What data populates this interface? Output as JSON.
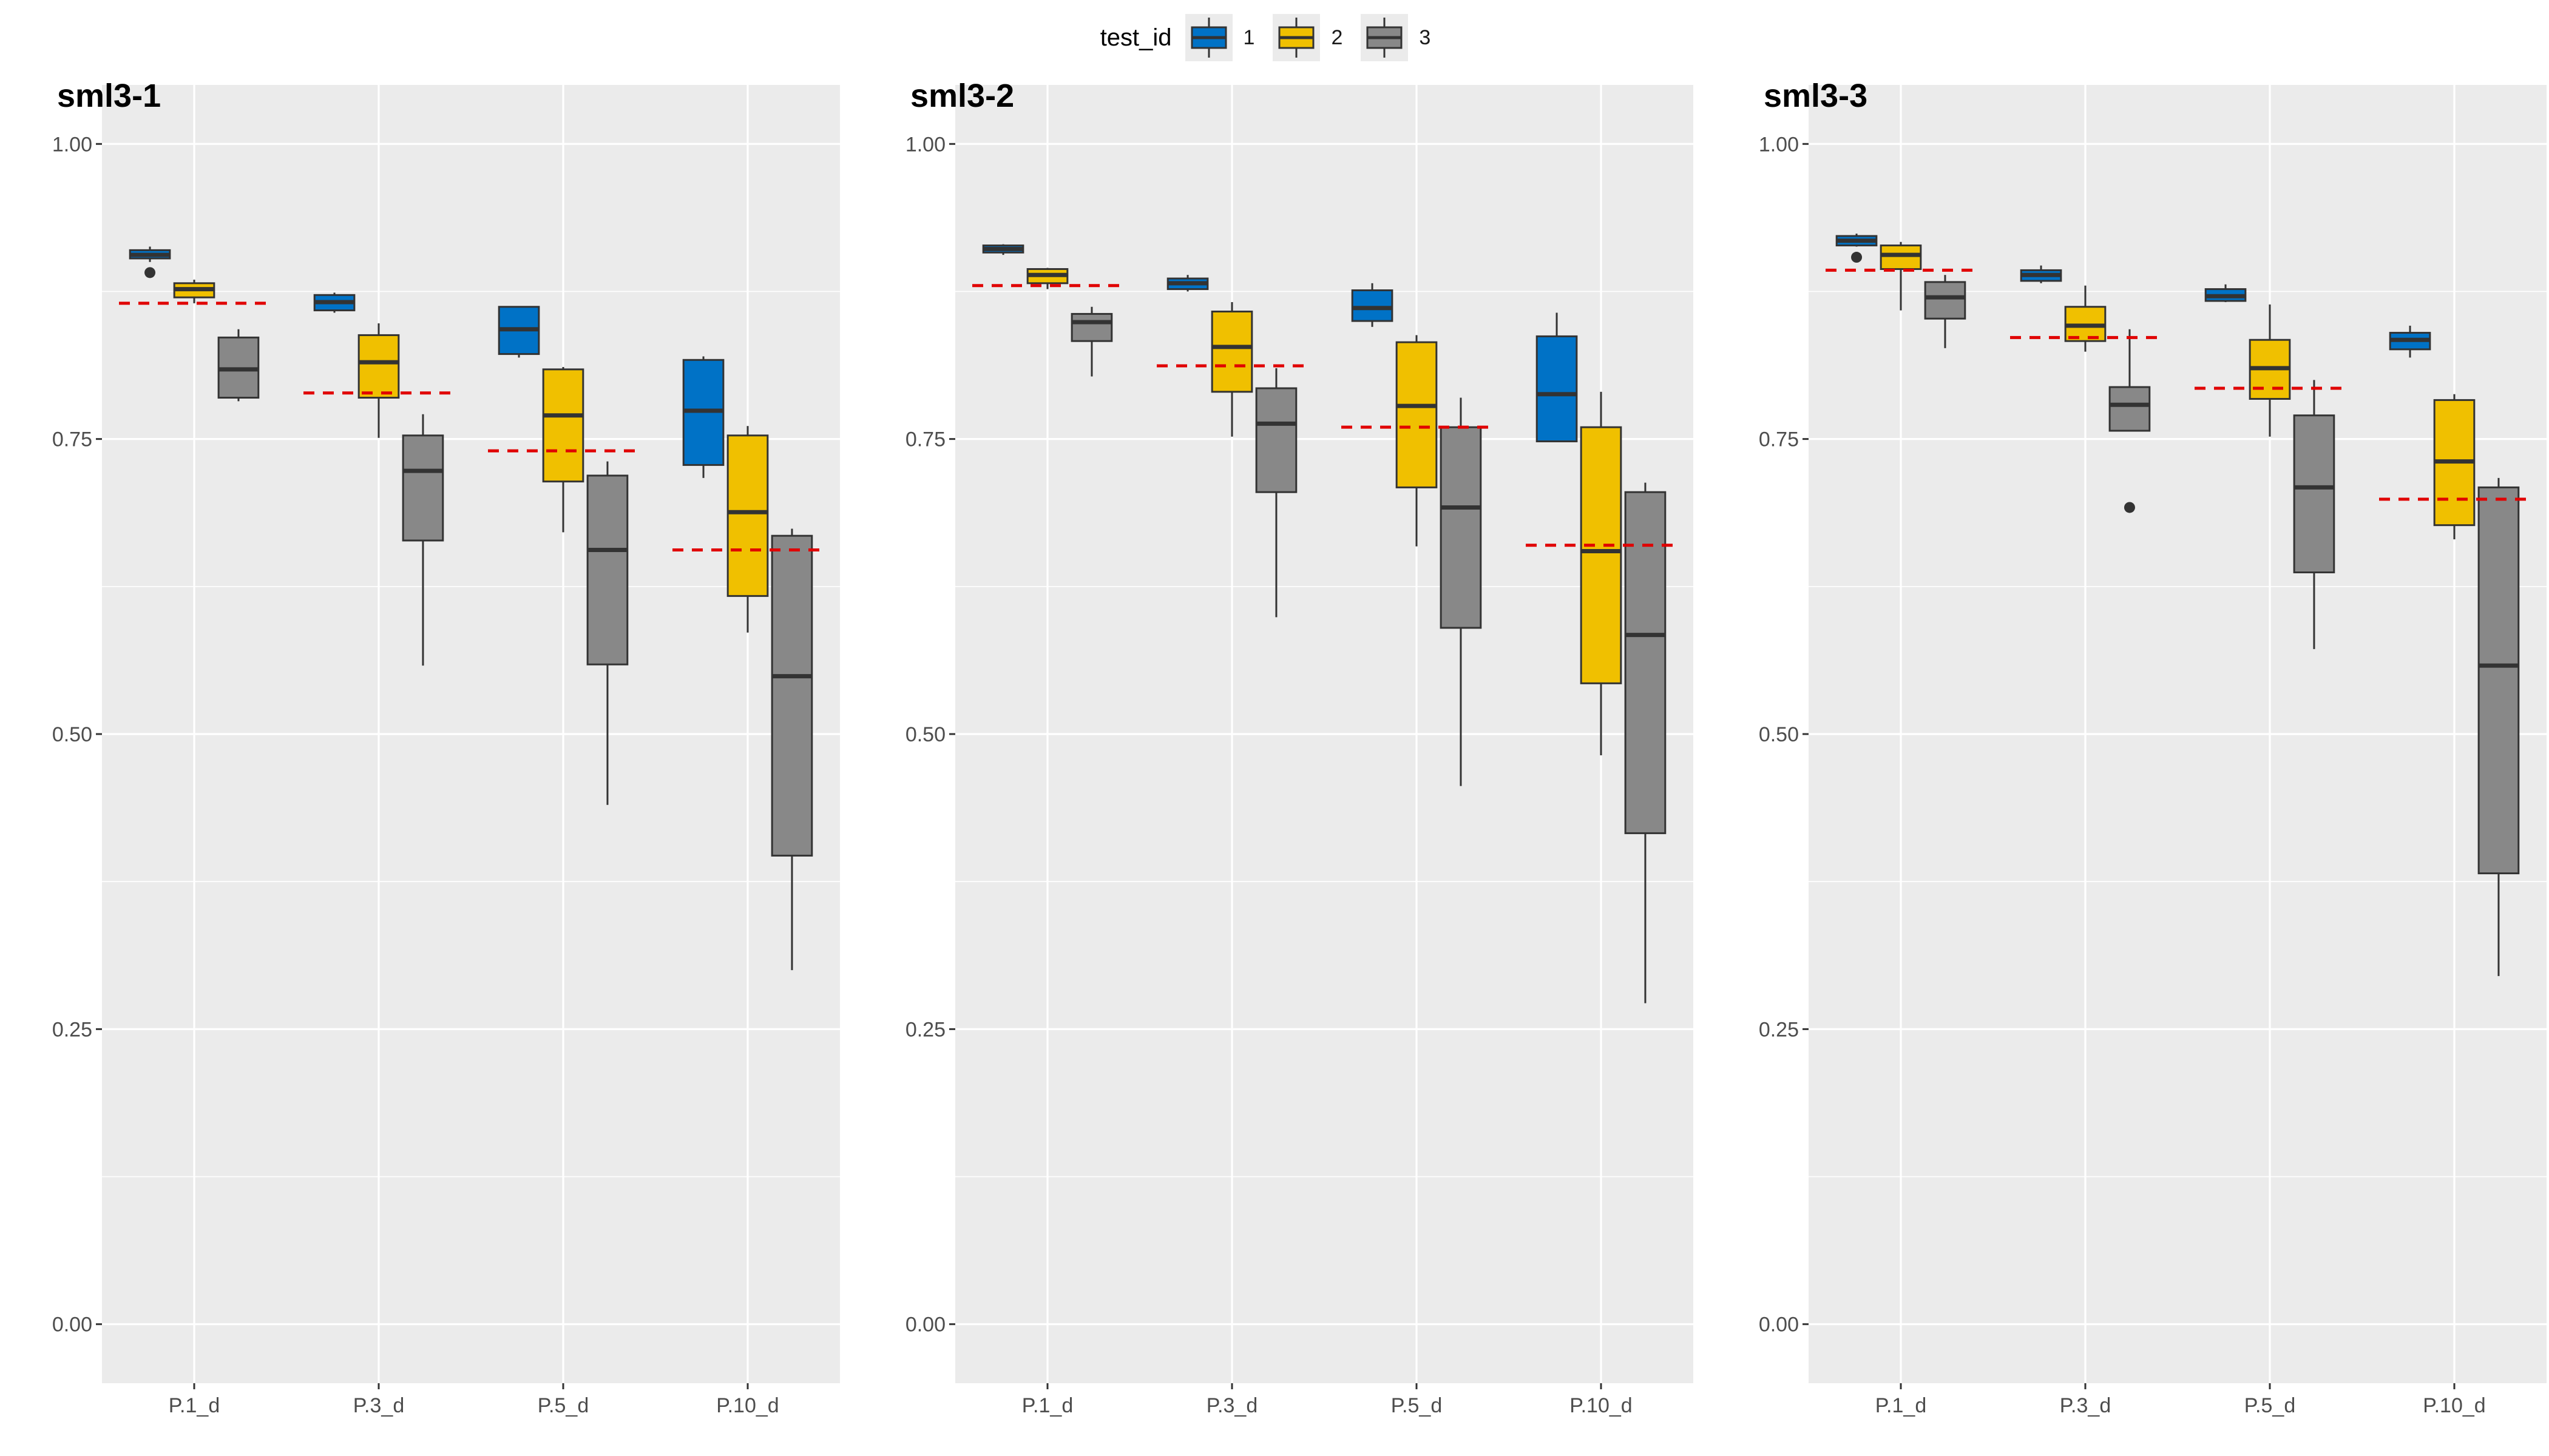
{
  "legend": {
    "title": "test_id",
    "items": [
      {
        "label": "1",
        "color": "#0072C6"
      },
      {
        "label": "2",
        "color": "#F0C000"
      },
      {
        "label": "3",
        "color": "#888888"
      }
    ]
  },
  "chart_data": [
    {
      "type": "box",
      "title": "sml3-1",
      "categories": [
        "P.1_d",
        "P.3_d",
        "P.5_d",
        "P.10_d"
      ],
      "ylim": [
        -0.05,
        1.05
      ],
      "yticks": [
        "0.00",
        "0.25",
        "0.50",
        "0.75",
        "1.00"
      ],
      "ref_line_color": "#E00000",
      "ref_lines": [
        0.865,
        0.789,
        0.74,
        0.656
      ],
      "series": [
        {
          "name": "1",
          "boxes": [
            {
              "min": 0.9,
              "q1": 0.903,
              "median": 0.906,
              "q3": 0.91,
              "max": 0.913,
              "outliers": [
                0.891
              ]
            },
            {
              "min": 0.857,
              "q1": 0.859,
              "median": 0.866,
              "q3": 0.872,
              "max": 0.874,
              "outliers": []
            },
            {
              "min": 0.819,
              "q1": 0.822,
              "median": 0.843,
              "q3": 0.862,
              "max": 0.862,
              "outliers": []
            },
            {
              "min": 0.717,
              "q1": 0.728,
              "median": 0.774,
              "q3": 0.817,
              "max": 0.82,
              "outliers": []
            }
          ]
        },
        {
          "name": "2",
          "boxes": [
            {
              "min": 0.865,
              "q1": 0.87,
              "median": 0.877,
              "q3": 0.882,
              "max": 0.885,
              "outliers": []
            },
            {
              "min": 0.751,
              "q1": 0.785,
              "median": 0.815,
              "q3": 0.838,
              "max": 0.848,
              "outliers": []
            },
            {
              "min": 0.671,
              "q1": 0.714,
              "median": 0.77,
              "q3": 0.809,
              "max": 0.811,
              "outliers": []
            },
            {
              "min": 0.586,
              "q1": 0.617,
              "median": 0.688,
              "q3": 0.753,
              "max": 0.761,
              "outliers": []
            }
          ]
        },
        {
          "name": "3",
          "boxes": [
            {
              "min": 0.782,
              "q1": 0.785,
              "median": 0.809,
              "q3": 0.836,
              "max": 0.843,
              "outliers": []
            },
            {
              "min": 0.558,
              "q1": 0.664,
              "median": 0.723,
              "q3": 0.753,
              "max": 0.771,
              "outliers": []
            },
            {
              "min": 0.44,
              "q1": 0.559,
              "median": 0.656,
              "q3": 0.719,
              "max": 0.731,
              "outliers": []
            },
            {
              "min": 0.3,
              "q1": 0.397,
              "median": 0.549,
              "q3": 0.668,
              "max": 0.674,
              "outliers": []
            }
          ]
        }
      ]
    },
    {
      "type": "box",
      "title": "sml3-2",
      "categories": [
        "P.1_d",
        "P.3_d",
        "P.5_d",
        "P.10_d"
      ],
      "ylim": [
        -0.05,
        1.05
      ],
      "yticks": [
        "0.00",
        "0.25",
        "0.50",
        "0.75",
        "1.00"
      ],
      "ref_line_color": "#E00000",
      "ref_lines": [
        0.88,
        0.812,
        0.76,
        0.66
      ],
      "series": [
        {
          "name": "1",
          "boxes": [
            {
              "min": 0.906,
              "q1": 0.908,
              "median": 0.911,
              "q3": 0.914,
              "max": 0.915,
              "outliers": []
            },
            {
              "min": 0.875,
              "q1": 0.877,
              "median": 0.882,
              "q3": 0.886,
              "max": 0.889,
              "outliers": []
            },
            {
              "min": 0.845,
              "q1": 0.85,
              "median": 0.861,
              "q3": 0.876,
              "max": 0.882,
              "outliers": []
            },
            {
              "min": 0.748,
              "q1": 0.748,
              "median": 0.788,
              "q3": 0.837,
              "max": 0.857,
              "outliers": []
            }
          ]
        },
        {
          "name": "2",
          "boxes": [
            {
              "min": 0.877,
              "q1": 0.882,
              "median": 0.889,
              "q3": 0.894,
              "max": 0.895,
              "outliers": []
            },
            {
              "min": 0.752,
              "q1": 0.79,
              "median": 0.828,
              "q3": 0.858,
              "max": 0.866,
              "outliers": []
            },
            {
              "min": 0.659,
              "q1": 0.709,
              "median": 0.778,
              "q3": 0.832,
              "max": 0.838,
              "outliers": []
            },
            {
              "min": 0.482,
              "q1": 0.543,
              "median": 0.655,
              "q3": 0.76,
              "max": 0.79,
              "outliers": []
            }
          ]
        },
        {
          "name": "3",
          "boxes": [
            {
              "min": 0.803,
              "q1": 0.833,
              "median": 0.849,
              "q3": 0.856,
              "max": 0.862,
              "outliers": []
            },
            {
              "min": 0.599,
              "q1": 0.705,
              "median": 0.763,
              "q3": 0.793,
              "max": 0.81,
              "outliers": []
            },
            {
              "min": 0.456,
              "q1": 0.59,
              "median": 0.692,
              "q3": 0.76,
              "max": 0.785,
              "outliers": []
            },
            {
              "min": 0.272,
              "q1": 0.416,
              "median": 0.584,
              "q3": 0.705,
              "max": 0.713,
              "outliers": []
            }
          ]
        }
      ]
    },
    {
      "type": "box",
      "title": "sml3-3",
      "categories": [
        "P.1_d",
        "P.3_d",
        "P.5_d",
        "P.10_d"
      ],
      "ylim": [
        -0.05,
        1.05
      ],
      "yticks": [
        "0.00",
        "0.25",
        "0.50",
        "0.75",
        "1.00"
      ],
      "ref_line_color": "#E00000",
      "ref_lines": [
        0.893,
        0.836,
        0.793,
        0.699
      ],
      "series": [
        {
          "name": "1",
          "boxes": [
            {
              "min": 0.913,
              "q1": 0.914,
              "median": 0.918,
              "q3": 0.922,
              "max": 0.924,
              "outliers": [
                0.904
              ]
            },
            {
              "min": 0.882,
              "q1": 0.884,
              "median": 0.889,
              "q3": 0.893,
              "max": 0.897,
              "outliers": []
            },
            {
              "min": 0.866,
              "q1": 0.867,
              "median": 0.871,
              "q3": 0.877,
              "max": 0.881,
              "outliers": []
            },
            {
              "min": 0.819,
              "q1": 0.826,
              "median": 0.834,
              "q3": 0.84,
              "max": 0.846,
              "outliers": []
            }
          ]
        },
        {
          "name": "2",
          "boxes": [
            {
              "min": 0.859,
              "q1": 0.894,
              "median": 0.906,
              "q3": 0.914,
              "max": 0.917,
              "outliers": []
            },
            {
              "min": 0.824,
              "q1": 0.833,
              "median": 0.846,
              "q3": 0.862,
              "max": 0.88,
              "outliers": []
            },
            {
              "min": 0.752,
              "q1": 0.784,
              "median": 0.81,
              "q3": 0.834,
              "max": 0.864,
              "outliers": []
            },
            {
              "min": 0.665,
              "q1": 0.677,
              "median": 0.731,
              "q3": 0.783,
              "max": 0.788,
              "outliers": []
            }
          ]
        },
        {
          "name": "3",
          "boxes": [
            {
              "min": 0.827,
              "q1": 0.852,
              "median": 0.87,
              "q3": 0.883,
              "max": 0.889,
              "outliers": []
            },
            {
              "min": 0.757,
              "q1": 0.757,
              "median": 0.779,
              "q3": 0.794,
              "max": 0.843,
              "outliers": [
                0.692
              ]
            },
            {
              "min": 0.572,
              "q1": 0.637,
              "median": 0.709,
              "q3": 0.77,
              "max": 0.8,
              "outliers": []
            },
            {
              "min": 0.295,
              "q1": 0.382,
              "median": 0.558,
              "q3": 0.709,
              "max": 0.717,
              "outliers": []
            }
          ]
        }
      ]
    }
  ]
}
